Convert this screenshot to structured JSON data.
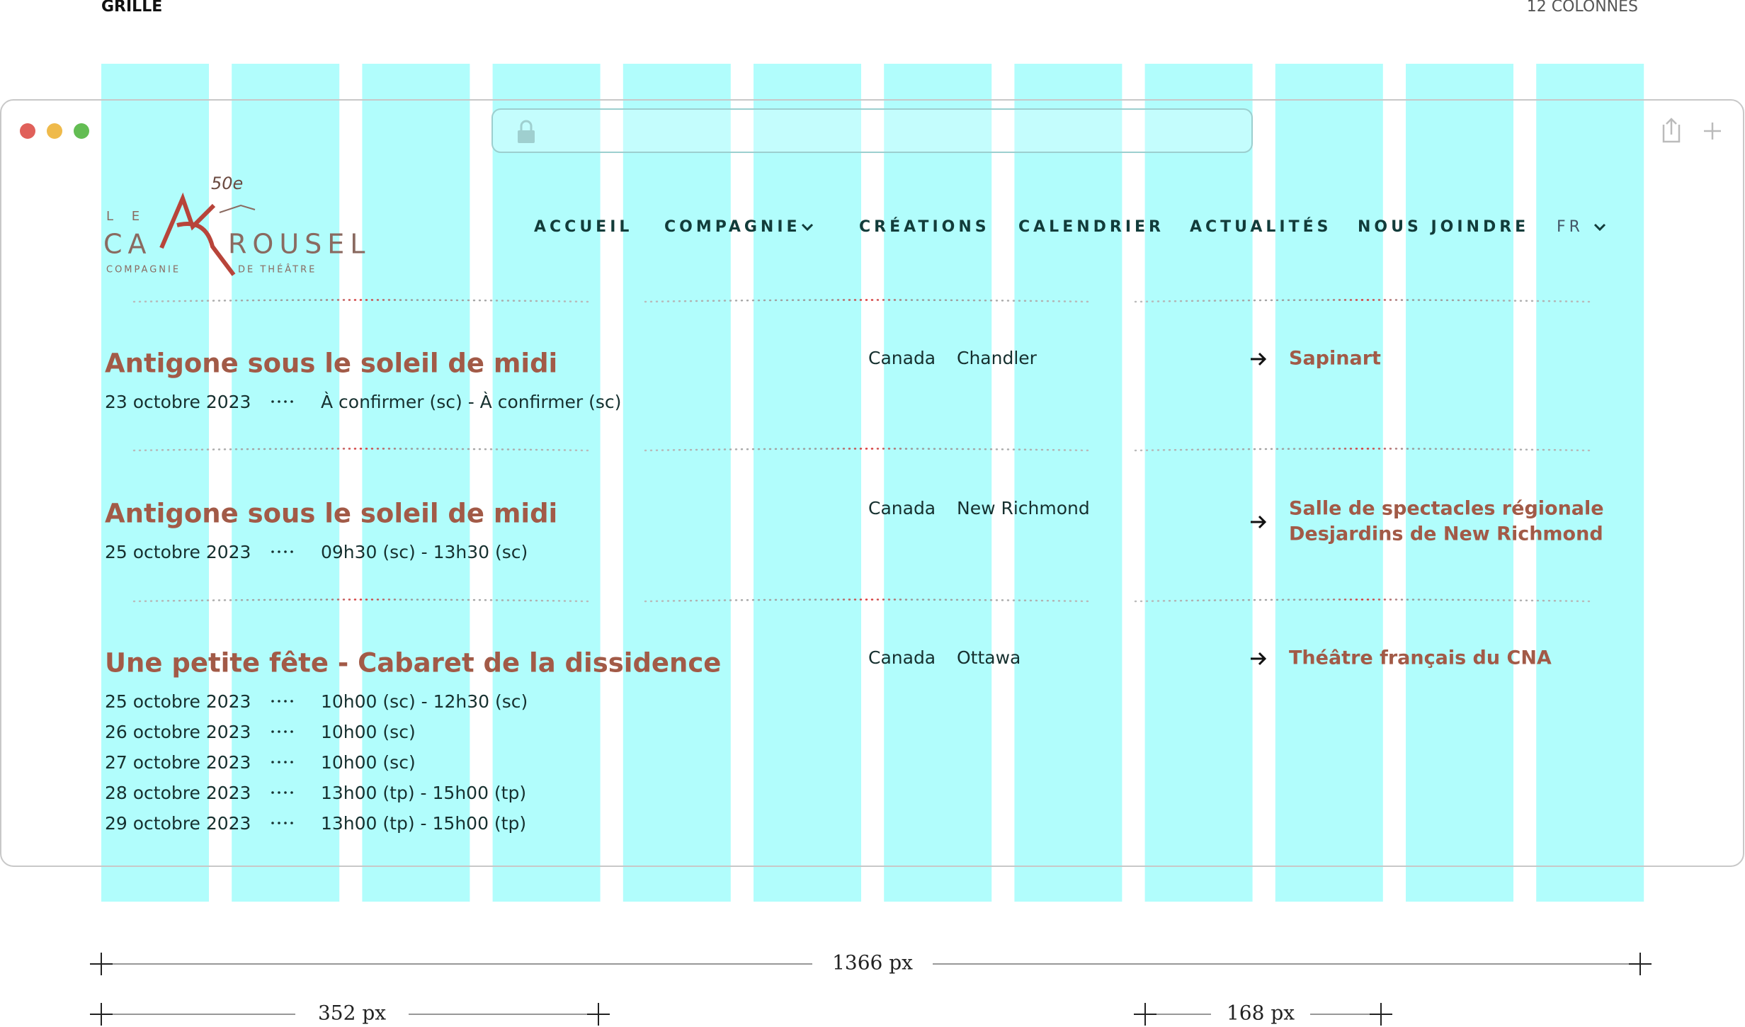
{
  "header": {
    "left": "GRILLE",
    "right": "12 COLONNES"
  },
  "logo": {
    "anniversary": "50e",
    "le": "L E",
    "ca": "CA",
    "rousel": "ROUSEL",
    "compagnie": "COMPAGNIE",
    "theatre": "DE THÉÂTRE"
  },
  "nav": [
    "ACCUEIL",
    "COMPAGNIE",
    "CRÉATIONS",
    "CALENDRIER",
    "ACTUALITÉS",
    "NOUS JOINDRE",
    "FR"
  ],
  "rows": [
    {
      "title": "Antigone sous le soleil de midi",
      "dates": [
        {
          "date": "23 octobre 2023",
          "time": "À confirmer (sc) - À confirmer (sc)"
        }
      ],
      "country": "Canada",
      "city": "Chandler",
      "venue": [
        "Sapinart"
      ]
    },
    {
      "title": "Antigone sous le soleil de midi",
      "dates": [
        {
          "date": "25 octobre 2023",
          "time": "09h30 (sc) - 13h30 (sc)"
        }
      ],
      "country": "Canada",
      "city": "New Richmond",
      "venue": [
        "Salle de spectacles régionale",
        "Desjardins de New Richmond"
      ]
    },
    {
      "title": "Une petite fête - Cabaret de la dissidence",
      "dates": [
        {
          "date": "25 octobre 2023",
          "time": "10h00 (sc) - 12h30 (sc)"
        },
        {
          "date": "26 octobre 2023",
          "time": "10h00 (sc)"
        },
        {
          "date": "27 octobre 2023",
          "time": "10h00 (sc)"
        },
        {
          "date": "28 octobre 2023",
          "time": "13h00 (tp) - 15h00 (tp)"
        },
        {
          "date": "29 octobre 2023",
          "time": "13h00 (tp) - 15h00 (tp)"
        }
      ],
      "country": "Canada",
      "city": "Ottawa",
      "venue": [
        "Théâtre français du CNA"
      ]
    }
  ],
  "measures": [
    "1366 px",
    "352 px",
    "168 px"
  ]
}
